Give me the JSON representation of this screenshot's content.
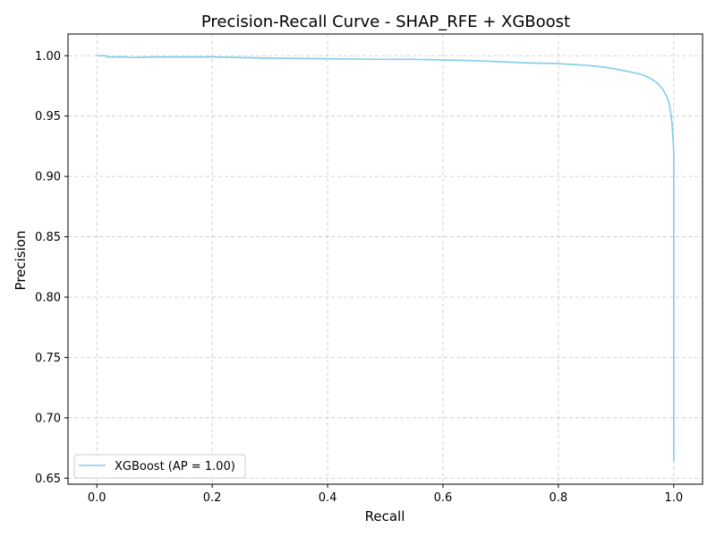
{
  "chart_data": {
    "type": "line",
    "title": "Precision-Recall Curve - SHAP_RFE + XGBoost",
    "xlabel": "Recall",
    "ylabel": "Precision",
    "xlim": [
      -0.05,
      1.05
    ],
    "ylim": [
      0.645,
      1.018
    ],
    "grid": true,
    "grid_style": "dashed",
    "legend_position": "lower-left",
    "x_ticks": [
      0.0,
      0.2,
      0.4,
      0.6,
      0.8,
      1.0
    ],
    "x_tick_labels": [
      "0.0",
      "0.2",
      "0.4",
      "0.6",
      "0.8",
      "1.0"
    ],
    "y_ticks": [
      0.65,
      0.7,
      0.75,
      0.8,
      0.85,
      0.9,
      0.95,
      1.0
    ],
    "y_tick_labels": [
      "0.65",
      "0.70",
      "0.75",
      "0.80",
      "0.85",
      "0.90",
      "0.95",
      "1.00"
    ],
    "series": [
      {
        "name": "XGBoost (AP = 1.00)",
        "color": "#87ceeb",
        "x": [
          0.0,
          0.015,
          0.017,
          0.05,
          0.06,
          0.1,
          0.2,
          0.3,
          0.4,
          0.5,
          0.55,
          0.6,
          0.65,
          0.7,
          0.75,
          0.8,
          0.85,
          0.88,
          0.9,
          0.92,
          0.94,
          0.95,
          0.96,
          0.97,
          0.98,
          0.985,
          0.99,
          0.993,
          0.995,
          0.997,
          0.998,
          0.999,
          1.0,
          1.0,
          1.0,
          1.0,
          1.0
        ],
        "y": [
          1.0,
          1.0,
          0.999,
          0.999,
          0.9985,
          0.999,
          0.999,
          0.998,
          0.9975,
          0.997,
          0.997,
          0.9965,
          0.996,
          0.995,
          0.994,
          0.9935,
          0.992,
          0.9905,
          0.989,
          0.987,
          0.985,
          0.9835,
          0.981,
          0.978,
          0.973,
          0.969,
          0.964,
          0.958,
          0.952,
          0.944,
          0.937,
          0.93,
          0.92,
          0.85,
          0.75,
          0.7,
          0.664
        ]
      }
    ]
  }
}
